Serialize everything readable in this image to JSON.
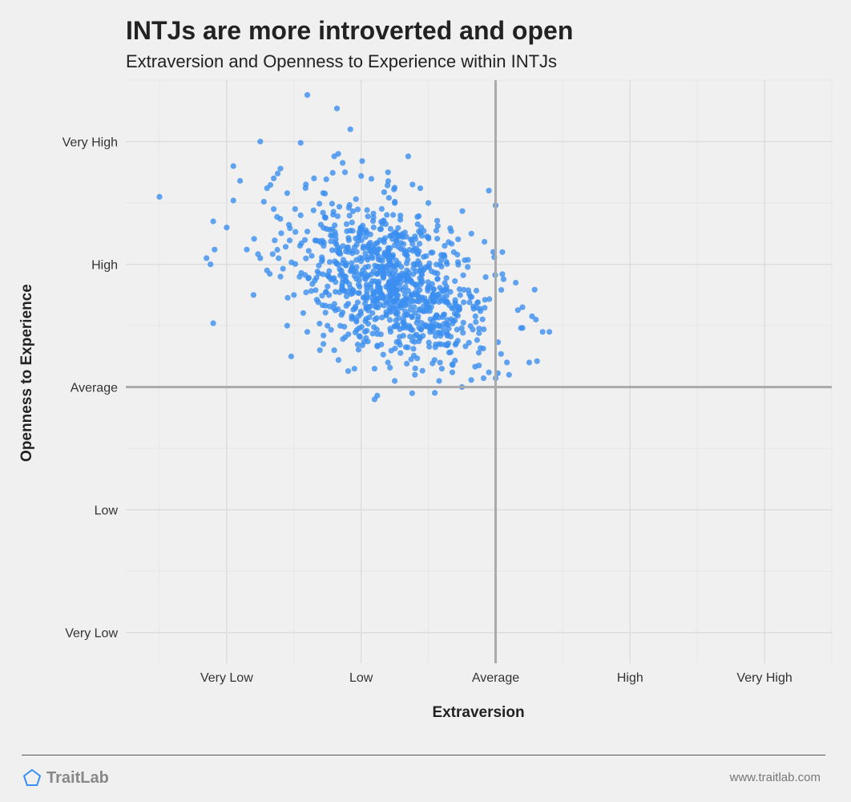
{
  "header": {
    "title": "INTJs are more introverted and open",
    "subtitle": "Extraversion and Openness to Experience within INTJs"
  },
  "footer": {
    "brand": "TraitLab",
    "url": "www.traitlab.com"
  },
  "colors": {
    "point": "#3b8ff0",
    "background": "#f0f0f0",
    "grid": "#dddddd",
    "reference_line": "#aaaaaa",
    "logo": "#3b8ff0"
  },
  "chart_data": {
    "type": "scatter",
    "title": "INTJs are more introverted and open",
    "subtitle": "Extraversion and Openness to Experience within INTJs",
    "xlabel": "Extraversion",
    "ylabel": "Openness to Experience",
    "scale_note": "category positions: Very Low=1, Low=2, Average=3, High=4, Very High=5",
    "x_ticks": [
      "Very Low",
      "Low",
      "Average",
      "High",
      "Very High"
    ],
    "y_ticks": [
      "Very Low",
      "Low",
      "Average",
      "High",
      "Very High"
    ],
    "xlim": [
      0.25,
      5.5
    ],
    "ylim": [
      0.75,
      5.5
    ],
    "reference_lines": {
      "x": 3,
      "y": 3
    },
    "grid": true,
    "legend": "none",
    "point_count_approx": 1000,
    "cluster_center": [
      2.25,
      3.85
    ],
    "cluster_spread": [
      0.36,
      0.3
    ],
    "points": [
      [
        0.5,
        4.55
      ],
      [
        0.9,
        3.52
      ],
      [
        0.85,
        4.05
      ],
      [
        0.88,
        4.0
      ],
      [
        0.91,
        4.12
      ],
      [
        0.9,
        4.35
      ],
      [
        1.05,
        4.8
      ],
      [
        1.25,
        5.0
      ],
      [
        1.4,
        4.78
      ],
      [
        1.6,
        5.38
      ],
      [
        1.82,
        5.27
      ],
      [
        1.92,
        5.1
      ],
      [
        1.55,
        4.99
      ],
      [
        1.8,
        4.88
      ],
      [
        1.83,
        4.9
      ],
      [
        1.35,
        4.7
      ],
      [
        1.65,
        4.7
      ],
      [
        2.0,
        4.72
      ],
      [
        2.2,
        4.75
      ],
      [
        2.35,
        4.88
      ],
      [
        1.88,
        4.75
      ],
      [
        2.44,
        4.62
      ],
      [
        1.1,
        4.68
      ],
      [
        1.3,
        4.62
      ],
      [
        1.05,
        4.52
      ],
      [
        1.0,
        4.3
      ],
      [
        1.15,
        4.12
      ],
      [
        1.25,
        4.05
      ],
      [
        1.45,
        4.58
      ],
      [
        1.55,
        4.4
      ],
      [
        1.35,
        4.45
      ],
      [
        1.4,
        3.9
      ],
      [
        1.5,
        3.75
      ],
      [
        1.2,
        3.75
      ],
      [
        1.3,
        3.95
      ],
      [
        1.45,
        3.5
      ],
      [
        1.6,
        3.45
      ],
      [
        1.75,
        3.5
      ],
      [
        1.48,
        3.25
      ],
      [
        1.72,
        3.42
      ],
      [
        1.8,
        3.3
      ],
      [
        1.95,
        3.15
      ],
      [
        2.1,
        3.15
      ],
      [
        2.2,
        3.2
      ],
      [
        2.12,
        2.93
      ],
      [
        2.1,
        2.9
      ],
      [
        2.25,
        3.05
      ],
      [
        2.4,
        3.1
      ],
      [
        2.38,
        2.95
      ],
      [
        2.58,
        3.05
      ],
      [
        2.6,
        3.15
      ],
      [
        2.75,
        3.0
      ],
      [
        2.95,
        3.12
      ],
      [
        3.1,
        3.1
      ],
      [
        3.25,
        3.2
      ],
      [
        3.35,
        3.45
      ],
      [
        3.4,
        3.45
      ],
      [
        3.3,
        3.55
      ],
      [
        3.2,
        3.65
      ],
      [
        3.15,
        3.85
      ],
      [
        3.05,
        3.92
      ],
      [
        3.0,
        4.48
      ],
      [
        3.05,
        4.1
      ],
      [
        2.82,
        4.25
      ],
      [
        2.67,
        4.27
      ],
      [
        2.95,
        4.6
      ],
      [
        2.5,
        4.5
      ],
      [
        2.25,
        4.5
      ]
    ]
  }
}
